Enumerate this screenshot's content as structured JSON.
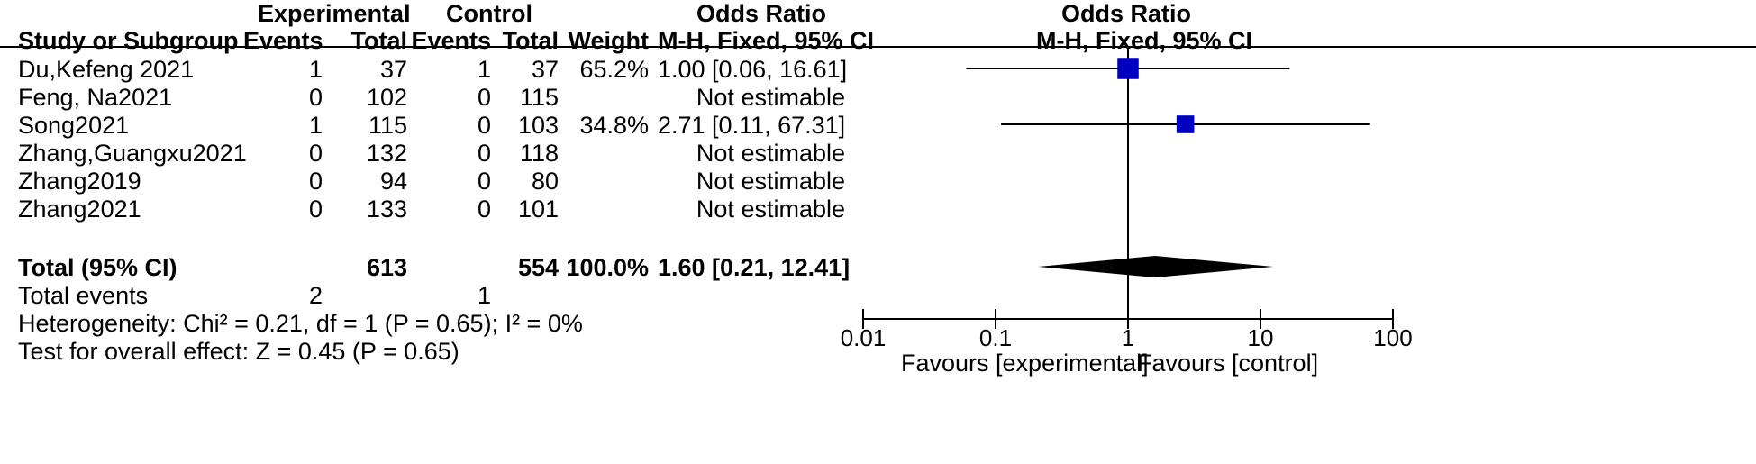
{
  "headers": {
    "group_experimental": "Experimental",
    "group_control": "Control",
    "group_odds_ratio_left": "Odds Ratio",
    "group_odds_ratio_right": "Odds Ratio",
    "study": "Study or Subgroup",
    "exp_events": "Events",
    "exp_total": "Total",
    "ctrl_events": "Events",
    "ctrl_total": "Total",
    "weight": "Weight",
    "method_left": "M-H, Fixed, 95% CI",
    "method_right": "M-H, Fixed, 95% CI"
  },
  "studies": [
    {
      "name": "Du,Kefeng 2021",
      "exp_events": "1",
      "exp_total": "37",
      "ctrl_events": "1",
      "ctrl_total": "37",
      "weight": "65.2%",
      "or_text": "1.00 [0.06, 16.61]"
    },
    {
      "name": "Feng, Na2021",
      "exp_events": "0",
      "exp_total": "102",
      "ctrl_events": "0",
      "ctrl_total": "115",
      "weight": "",
      "or_text": "Not estimable"
    },
    {
      "name": "Song2021",
      "exp_events": "1",
      "exp_total": "115",
      "ctrl_events": "0",
      "ctrl_total": "103",
      "weight": "34.8%",
      "or_text": "2.71 [0.11, 67.31]"
    },
    {
      "name": "Zhang,Guangxu2021",
      "exp_events": "0",
      "exp_total": "132",
      "ctrl_events": "0",
      "ctrl_total": "118",
      "weight": "",
      "or_text": "Not estimable"
    },
    {
      "name": "Zhang2019",
      "exp_events": "0",
      "exp_total": "94",
      "ctrl_events": "0",
      "ctrl_total": "80",
      "weight": "",
      "or_text": "Not estimable"
    },
    {
      "name": "Zhang2021",
      "exp_events": "0",
      "exp_total": "133",
      "ctrl_events": "0",
      "ctrl_total": "101",
      "weight": "",
      "or_text": "Not estimable"
    }
  ],
  "total": {
    "label": "Total (95% CI)",
    "exp_total": "613",
    "ctrl_total": "554",
    "weight": "100.0%",
    "or_text": "1.60 [0.21, 12.41]"
  },
  "total_events": {
    "label": "Total events",
    "exp_events": "2",
    "ctrl_events": "1"
  },
  "heterogeneity": "Heterogeneity: Chi² = 0.21, df = 1 (P = 0.65); I² = 0%",
  "overall_effect": "Test for overall effect: Z = 0.45 (P = 0.65)",
  "chart_data": {
    "type": "forest",
    "x_scale": "log",
    "xlim": [
      0.01,
      100
    ],
    "ticks": [
      0.01,
      0.1,
      1,
      10,
      100
    ],
    "tick_labels": [
      "0.01",
      "0.1",
      "1",
      "10",
      "100"
    ],
    "reference_line": 1,
    "favours_left": "Favours [experimental]",
    "favours_right": "Favours [control]",
    "square_color": "#0000c0",
    "points": [
      {
        "study": "Du,Kefeng 2021",
        "or": 1.0,
        "ci_low": 0.06,
        "ci_high": 16.61,
        "weight": 65.2
      },
      {
        "study": "Song2021",
        "or": 2.71,
        "ci_low": 0.11,
        "ci_high": 67.31,
        "weight": 34.8
      }
    ],
    "summary": {
      "or": 1.6,
      "ci_low": 0.21,
      "ci_high": 12.41
    }
  }
}
